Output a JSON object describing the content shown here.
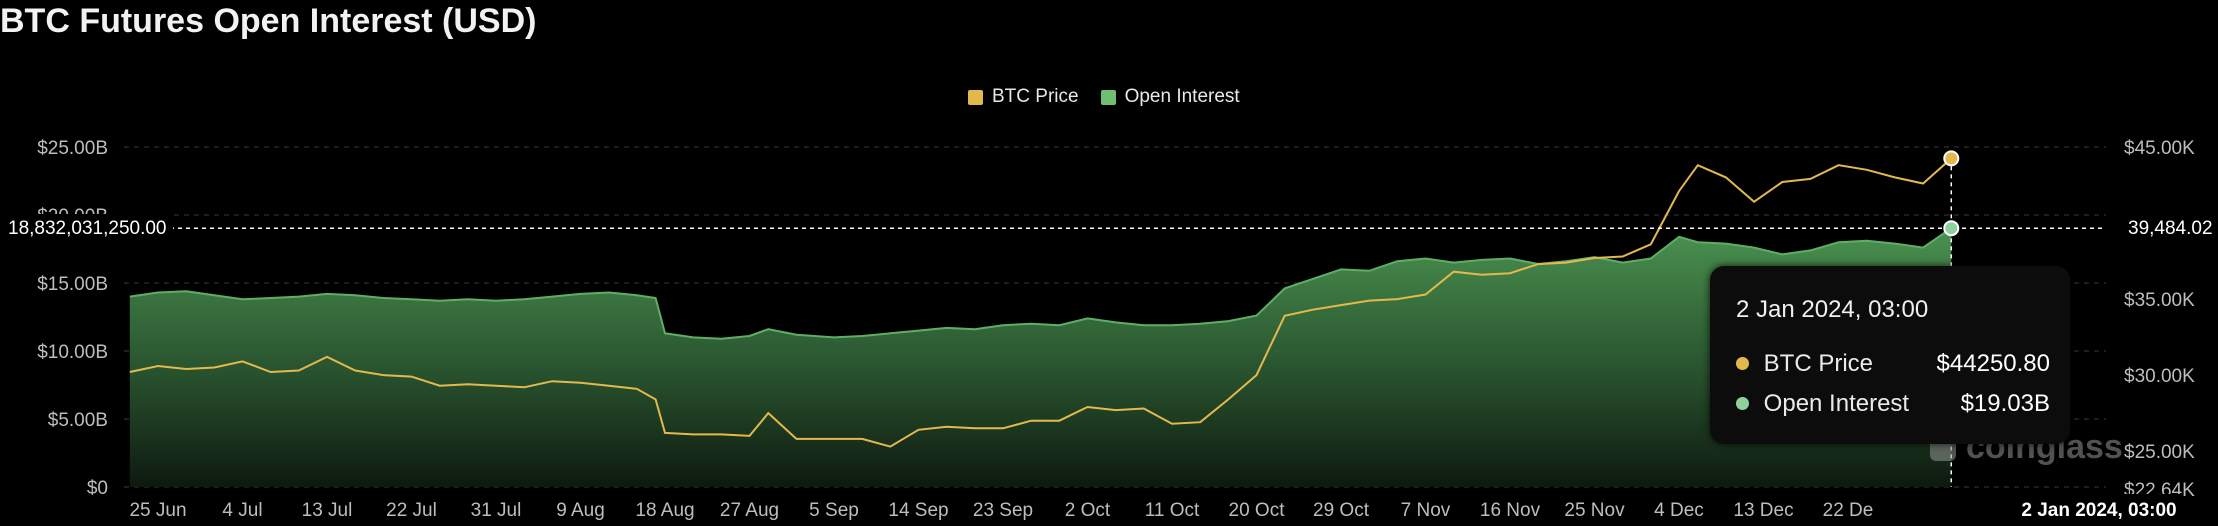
{
  "title": "BTC Futures Open Interest (USD)",
  "legend": [
    {
      "label": "BTC Price",
      "color": "#e3b94d"
    },
    {
      "label": "Open Interest",
      "color": "#6fbf73"
    }
  ],
  "crosshair": {
    "left_value": "18,832,031,250.00",
    "right_value": "39,484.02",
    "bottom_label": "2 Jan 2024, 03:00"
  },
  "tooltip": {
    "time": "2 Jan 2024, 03:00",
    "rows": [
      {
        "label": "BTC Price",
        "value": "$44250.80",
        "color": "#e3b94d"
      },
      {
        "label": "Open Interest",
        "value": "$19.03B",
        "color": "#8fd19e"
      }
    ]
  },
  "watermark": "coinglass",
  "chart_data": {
    "type": "area",
    "title": "BTC Futures Open Interest (USD)",
    "x_tick_labels": [
      "25 Jun",
      "4 Jul",
      "13 Jul",
      "22 Jul",
      "31 Jul",
      "9 Aug",
      "18 Aug",
      "27 Aug",
      "5 Sep",
      "14 Sep",
      "23 Sep",
      "2 Oct",
      "11 Oct",
      "20 Oct",
      "29 Oct",
      "7 Nov",
      "16 Nov",
      "25 Nov",
      "4 Dec",
      "13 Dec",
      "22 De"
    ],
    "y_left": {
      "ticks": [
        "$0",
        "$5.00B",
        "$10.00B",
        "$15.00B",
        "$20.00B",
        "$25.00B"
      ],
      "range": [
        0,
        25
      ]
    },
    "y_right": {
      "ticks": [
        "$22.64K",
        "$25.00K",
        "$30.00K",
        "$35.00K",
        "$40.00K",
        "$45.00K"
      ],
      "range": [
        22.64,
        45
      ]
    },
    "x": [
      "2023-06-22",
      "2023-06-25",
      "2023-06-28",
      "2023-07-01",
      "2023-07-04",
      "2023-07-07",
      "2023-07-10",
      "2023-07-13",
      "2023-07-16",
      "2023-07-19",
      "2023-07-22",
      "2023-07-25",
      "2023-07-28",
      "2023-07-31",
      "2023-08-03",
      "2023-08-06",
      "2023-08-09",
      "2023-08-12",
      "2023-08-15",
      "2023-08-17",
      "2023-08-18",
      "2023-08-21",
      "2023-08-24",
      "2023-08-27",
      "2023-08-29",
      "2023-09-01",
      "2023-09-05",
      "2023-09-08",
      "2023-09-11",
      "2023-09-14",
      "2023-09-17",
      "2023-09-20",
      "2023-09-23",
      "2023-09-26",
      "2023-09-29",
      "2023-10-02",
      "2023-10-05",
      "2023-10-08",
      "2023-10-11",
      "2023-10-14",
      "2023-10-17",
      "2023-10-20",
      "2023-10-23",
      "2023-10-26",
      "2023-10-29",
      "2023-11-01",
      "2023-11-04",
      "2023-11-07",
      "2023-11-10",
      "2023-11-13",
      "2023-11-16",
      "2023-11-19",
      "2023-11-22",
      "2023-11-25",
      "2023-11-28",
      "2023-12-01",
      "2023-12-04",
      "2023-12-06",
      "2023-12-09",
      "2023-12-12",
      "2023-12-15",
      "2023-12-18",
      "2023-12-21",
      "2023-12-24",
      "2023-12-27",
      "2023-12-30",
      "2024-01-02"
    ],
    "series": [
      {
        "name": "Open Interest",
        "axis": "left",
        "unit": "B USD",
        "values": [
          14.0,
          14.3,
          14.4,
          14.1,
          13.8,
          13.9,
          14.0,
          14.2,
          14.1,
          13.9,
          13.8,
          13.7,
          13.8,
          13.7,
          13.8,
          14.0,
          14.2,
          14.3,
          14.1,
          13.9,
          11.3,
          11.0,
          10.9,
          11.1,
          11.6,
          11.2,
          11.0,
          11.1,
          11.3,
          11.5,
          11.7,
          11.6,
          11.9,
          12.0,
          11.9,
          12.4,
          12.1,
          11.9,
          11.9,
          12.0,
          12.2,
          12.6,
          14.6,
          15.3,
          16.0,
          15.9,
          16.6,
          16.8,
          16.5,
          16.7,
          16.8,
          16.4,
          16.6,
          16.9,
          16.5,
          16.8,
          18.4,
          18.0,
          17.9,
          17.6,
          17.1,
          17.4,
          18.0,
          18.1,
          17.9,
          17.6,
          19.03
        ]
      },
      {
        "name": "BTC Price",
        "axis": "right",
        "unit": "K USD",
        "values": [
          30.2,
          30.6,
          30.4,
          30.5,
          30.9,
          30.2,
          30.3,
          31.2,
          30.3,
          30.0,
          29.9,
          29.3,
          29.4,
          29.3,
          29.2,
          29.6,
          29.5,
          29.3,
          29.1,
          28.4,
          26.2,
          26.1,
          26.1,
          26.0,
          27.5,
          25.8,
          25.8,
          25.8,
          25.3,
          26.4,
          26.6,
          26.5,
          26.5,
          27.0,
          27.0,
          27.9,
          27.7,
          27.8,
          26.8,
          26.9,
          28.4,
          30.0,
          33.9,
          34.3,
          34.6,
          34.9,
          35.0,
          35.3,
          36.8,
          36.6,
          36.7,
          37.3,
          37.4,
          37.7,
          37.8,
          38.6,
          42.1,
          43.8,
          43.0,
          41.4,
          42.7,
          42.9,
          43.8,
          43.5,
          43.0,
          42.6,
          44.25
        ]
      }
    ],
    "grid": true,
    "legend_position": "top-center"
  }
}
